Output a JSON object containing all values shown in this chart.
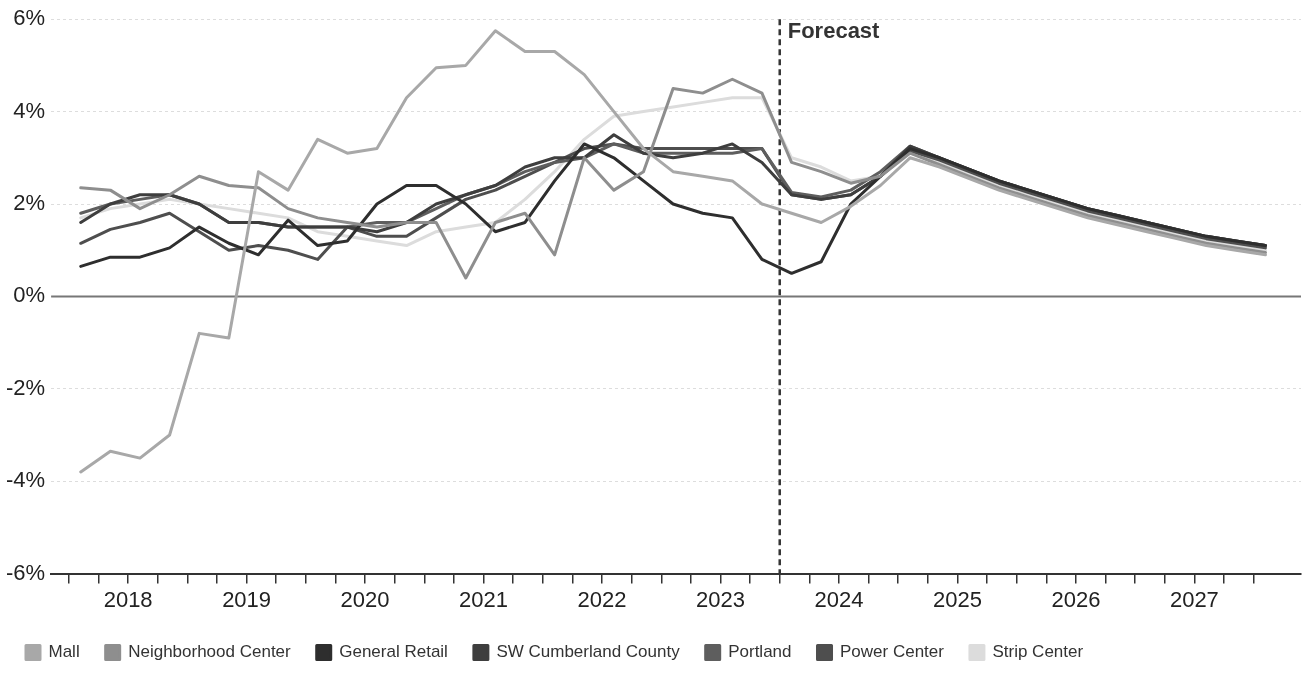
{
  "chart_data": {
    "type": "line",
    "x": [
      2018.1,
      2018.35,
      2018.6,
      2018.85,
      2019.1,
      2019.35,
      2019.6,
      2019.85,
      2020.1,
      2020.35,
      2020.6,
      2020.85,
      2021.1,
      2021.35,
      2021.6,
      2021.85,
      2022.1,
      2022.35,
      2022.6,
      2022.85,
      2023.1,
      2023.35,
      2023.6,
      2023.85,
      2024.1,
      2024.35,
      2024.6,
      2024.85,
      2025.1,
      2025.35,
      2025.6,
      2025.85,
      2026.1,
      2026.35,
      2026.6,
      2026.85,
      2027.1,
      2027.35,
      2027.6,
      2027.85,
      2028.1
    ],
    "series": [
      {
        "name": "Mall",
        "color": "#a8a8a8",
        "values": [
          -3.8,
          -3.35,
          -3.5,
          -3.0,
          -0.8,
          -0.9,
          2.7,
          2.3,
          3.4,
          3.1,
          3.2,
          4.3,
          4.95,
          5.0,
          5.75,
          5.3,
          5.3,
          4.8,
          4.0,
          3.2,
          2.7,
          2.6,
          2.5,
          2.0,
          1.8,
          1.6,
          1.95,
          2.4,
          3.0,
          2.8,
          2.55,
          2.3,
          2.1,
          1.9,
          1.7,
          1.55,
          1.4,
          1.25,
          1.1,
          1.0,
          0.9
        ]
      },
      {
        "name": "Neighborhood Center",
        "color": "#8e8e8e",
        "values": [
          2.35,
          2.3,
          1.9,
          2.2,
          2.6,
          2.4,
          2.35,
          1.9,
          1.7,
          1.6,
          1.5,
          1.6,
          1.6,
          0.4,
          1.6,
          1.8,
          0.9,
          3.0,
          2.3,
          2.7,
          4.5,
          4.4,
          4.7,
          4.4,
          2.9,
          2.7,
          2.45,
          2.6,
          3.1,
          2.85,
          2.6,
          2.35,
          2.15,
          1.95,
          1.75,
          1.6,
          1.45,
          1.3,
          1.15,
          1.05,
          0.95
        ]
      },
      {
        "name": "General Retail",
        "color": "#2e2e2e",
        "values": [
          0.65,
          0.85,
          0.85,
          1.05,
          1.5,
          1.15,
          0.9,
          1.65,
          1.1,
          1.2,
          2.0,
          2.4,
          2.4,
          2.0,
          1.4,
          1.6,
          2.5,
          3.3,
          3.0,
          2.5,
          2.0,
          1.8,
          1.7,
          0.8,
          0.5,
          0.75,
          2.0,
          2.6,
          3.2,
          3.0,
          2.75,
          2.5,
          2.3,
          2.1,
          1.9,
          1.75,
          1.6,
          1.45,
          1.3,
          1.2,
          1.1
        ]
      },
      {
        "name": "SW Cumberland County",
        "color": "#3e3e3e",
        "values": [
          1.6,
          2.0,
          2.2,
          2.2,
          2.0,
          1.6,
          1.6,
          1.5,
          1.5,
          1.5,
          1.4,
          1.6,
          2.0,
          2.2,
          2.4,
          2.8,
          3.0,
          3.0,
          3.5,
          3.1,
          3.0,
          3.1,
          3.3,
          2.9,
          2.2,
          2.1,
          2.2,
          2.6,
          3.25,
          3.0,
          2.75,
          2.5,
          2.3,
          2.1,
          1.9,
          1.75,
          1.6,
          1.45,
          1.3,
          1.2,
          1.1
        ]
      },
      {
        "name": "Portland",
        "color": "#5e5e5e",
        "values": [
          1.8,
          2.0,
          2.1,
          2.2,
          2.0,
          1.6,
          1.6,
          1.5,
          1.5,
          1.5,
          1.6,
          1.6,
          1.9,
          2.2,
          2.4,
          2.7,
          2.9,
          3.0,
          3.3,
          3.1,
          3.1,
          3.1,
          3.1,
          3.2,
          2.25,
          2.15,
          2.3,
          2.7,
          3.25,
          3.0,
          2.75,
          2.5,
          2.3,
          2.1,
          1.9,
          1.75,
          1.6,
          1.45,
          1.3,
          1.2,
          1.1
        ]
      },
      {
        "name": "Power Center",
        "color": "#4e4e4e",
        "values": [
          1.15,
          1.45,
          1.6,
          1.8,
          1.4,
          1.0,
          1.1,
          1.0,
          0.8,
          1.5,
          1.3,
          1.3,
          1.7,
          2.1,
          2.3,
          2.6,
          2.9,
          3.2,
          3.3,
          3.2,
          3.2,
          3.2,
          3.2,
          3.2,
          2.2,
          2.1,
          2.2,
          2.6,
          3.15,
          2.95,
          2.7,
          2.45,
          2.25,
          2.05,
          1.85,
          1.7,
          1.55,
          1.4,
          1.25,
          1.15,
          1.05
        ]
      },
      {
        "name": "Strip Center",
        "color": "#dcdcdc",
        "values": [
          1.7,
          1.9,
          2.0,
          2.1,
          2.0,
          1.9,
          1.8,
          1.7,
          1.4,
          1.3,
          1.2,
          1.1,
          1.4,
          1.5,
          1.6,
          2.1,
          2.7,
          3.4,
          3.9,
          4.0,
          4.1,
          4.2,
          4.3,
          4.3,
          3.0,
          2.8,
          2.5,
          2.6,
          3.1,
          2.9,
          2.65,
          2.4,
          2.2,
          2.0,
          1.8,
          1.65,
          1.5,
          1.35,
          1.2,
          1.1,
          1.0
        ]
      }
    ],
    "xlim": [
      2017.85,
      2028.4
    ],
    "xticks": [
      {
        "value": 2018,
        "label": null
      },
      {
        "value": 2018.25,
        "label": null
      },
      {
        "value": 2018.5,
        "label": "2018"
      },
      {
        "value": 2018.75,
        "label": null
      },
      {
        "value": 2019,
        "label": null
      },
      {
        "value": 2019.25,
        "label": null
      },
      {
        "value": 2019.5,
        "label": "2019"
      },
      {
        "value": 2019.75,
        "label": null
      },
      {
        "value": 2020,
        "label": null
      },
      {
        "value": 2020.25,
        "label": null
      },
      {
        "value": 2020.5,
        "label": "2020"
      },
      {
        "value": 2020.75,
        "label": null
      },
      {
        "value": 2021,
        "label": null
      },
      {
        "value": 2021.25,
        "label": null
      },
      {
        "value": 2021.5,
        "label": "2021"
      },
      {
        "value": 2021.75,
        "label": null
      },
      {
        "value": 2022,
        "label": null
      },
      {
        "value": 2022.25,
        "label": null
      },
      {
        "value": 2022.5,
        "label": "2022"
      },
      {
        "value": 2022.75,
        "label": null
      },
      {
        "value": 2023,
        "label": null
      },
      {
        "value": 2023.25,
        "label": null
      },
      {
        "value": 2023.5,
        "label": "2023"
      },
      {
        "value": 2023.75,
        "label": null
      },
      {
        "value": 2024,
        "label": null
      },
      {
        "value": 2024.25,
        "label": null
      },
      {
        "value": 2024.5,
        "label": "2024"
      },
      {
        "value": 2024.75,
        "label": null
      },
      {
        "value": 2025,
        "label": null
      },
      {
        "value": 2025.25,
        "label": null
      },
      {
        "value": 2025.5,
        "label": "2025"
      },
      {
        "value": 2025.75,
        "label": null
      },
      {
        "value": 2026,
        "label": null
      },
      {
        "value": 2026.25,
        "label": null
      },
      {
        "value": 2026.5,
        "label": "2026"
      },
      {
        "value": 2026.75,
        "label": null
      },
      {
        "value": 2027,
        "label": null
      },
      {
        "value": 2027.25,
        "label": null
      },
      {
        "value": 2027.5,
        "label": "2027"
      },
      {
        "value": 2027.75,
        "label": null
      },
      {
        "value": 2028,
        "label": null
      }
    ],
    "ylim": [
      -6,
      6
    ],
    "yticks": [
      {
        "value": -6,
        "label": "-6%"
      },
      {
        "value": -4,
        "label": "-4%"
      },
      {
        "value": -2,
        "label": "-2%"
      },
      {
        "value": 0,
        "label": "0%"
      },
      {
        "value": 2,
        "label": "2%"
      },
      {
        "value": 4,
        "label": "4%"
      },
      {
        "value": 6,
        "label": "6%"
      }
    ],
    "ref_lines": [
      {
        "axis": "y",
        "value": 0,
        "color": "#777777",
        "line_style": "solid"
      },
      {
        "axis": "x",
        "value": 2024,
        "label": "Forecast",
        "color": "#333333",
        "line_style": "dashed"
      }
    ],
    "grid": "y",
    "legend": "bottom",
    "marker": "none",
    "line_style": "solid"
  }
}
